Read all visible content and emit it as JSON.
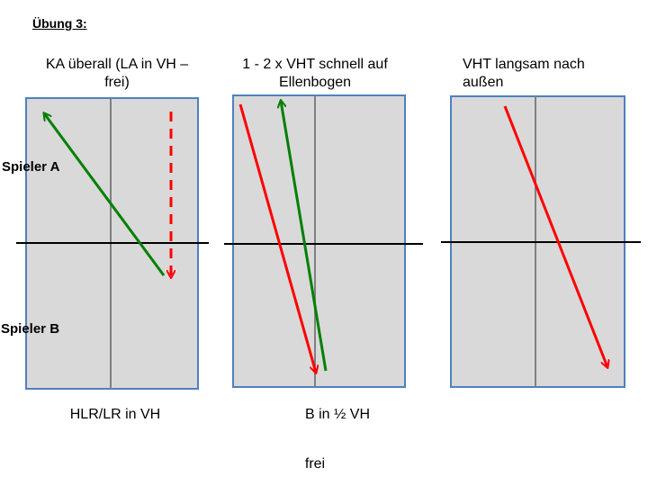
{
  "title": "Übung 3:",
  "players": {
    "a": "Spieler A",
    "b": "Spieler B"
  },
  "panels": [
    {
      "caption_line1": "KA überall (LA in VH –",
      "caption_line2": "frei)",
      "bottom_caption": "HLR/LR in VH"
    },
    {
      "caption_line1": "1 - 2 x VHT schnell auf",
      "caption_line2": "Ellenbogen",
      "bottom_caption": "B in ½ VH"
    },
    {
      "caption_line1": "VHT langsam nach",
      "caption_line2": "außen",
      "bottom_caption": ""
    }
  ],
  "footer": "frei",
  "colors": {
    "table_fill": "#d9d9d9",
    "table_border": "#4f81bd",
    "center_line": "#808080",
    "net": "#000000",
    "arrow_red": "#ff0000",
    "arrow_green": "#008000"
  },
  "arrows": [
    {
      "panel": 0,
      "color": "green",
      "style": "solid"
    },
    {
      "panel": 0,
      "color": "red",
      "style": "dashed"
    },
    {
      "panel": 1,
      "color": "red",
      "style": "solid"
    },
    {
      "panel": 1,
      "color": "green",
      "style": "solid"
    },
    {
      "panel": 2,
      "color": "red",
      "style": "solid"
    }
  ]
}
